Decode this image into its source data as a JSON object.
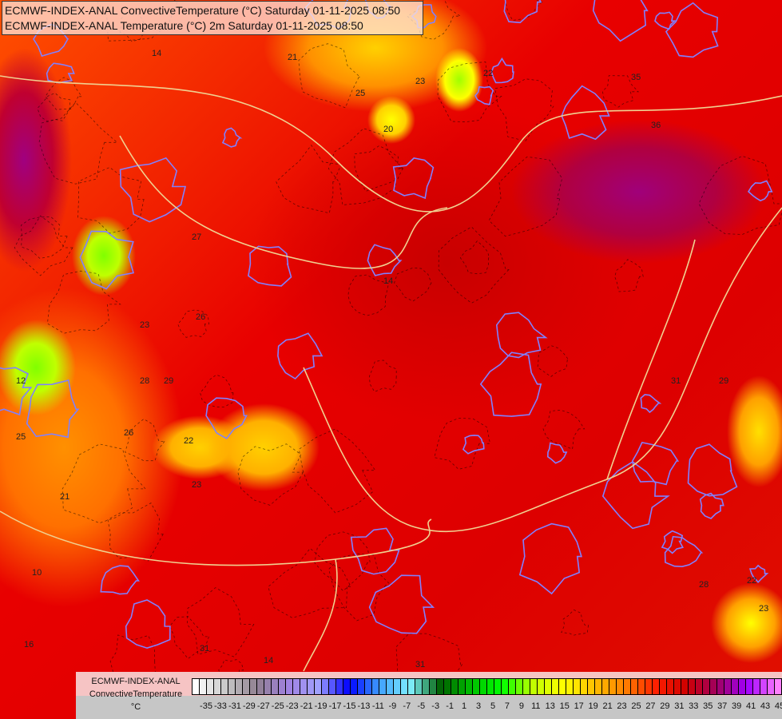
{
  "title": {
    "line1": "ECMWF-INDEX-ANAL ConvectiveTemperature (°C) Saturday 01-11-2025 08:50",
    "line2": "ECMWF-INDEX-ANAL Temperature (°C) 2m Saturday 01-11-2025 08:50"
  },
  "legend": {
    "name1": "ECMWF-INDEX-ANAL",
    "name2": "ConvectiveTemperature",
    "unit": "°C",
    "tick_labels": [
      "-35",
      "-33",
      "-31",
      "-29",
      "-27",
      "-25",
      "-23",
      "-21",
      "-19",
      "-17",
      "-15",
      "-13",
      "-11",
      "-9",
      "-7",
      "-5",
      "-3",
      "-1",
      "1",
      "3",
      "5",
      "7",
      "9",
      "11",
      "13",
      "15",
      "17",
      "19",
      "21",
      "23",
      "25",
      "27",
      "29",
      "31",
      "33",
      "35",
      "37",
      "39",
      "41",
      "43",
      "45"
    ],
    "color_stops": [
      "#ffffff",
      "#c8c8c8",
      "#908090",
      "#a080e0",
      "#a0a0ff",
      "#0000ff",
      "#40a0ff",
      "#80f0ff",
      "#006000",
      "#00c000",
      "#00ff00",
      "#c0ff00",
      "#ffff00",
      "#ffc000",
      "#ff8000",
      "#ff2000",
      "#d00000",
      "#a00060",
      "#a000ff",
      "#ff80ff"
    ]
  },
  "map": {
    "contour_labels": [
      "14",
      "21",
      "25",
      "23",
      "22",
      "20",
      "26",
      "27",
      "23",
      "29",
      "28",
      "25",
      "22",
      "23",
      "26",
      "10",
      "12",
      "16",
      "31",
      "31",
      "14",
      "29",
      "31",
      "35",
      "36",
      "22",
      "23",
      "21",
      "14",
      "28"
    ]
  },
  "colors": {
    "isotherm": "#8080ff",
    "border": "#f0d090",
    "contour": "#000000"
  }
}
